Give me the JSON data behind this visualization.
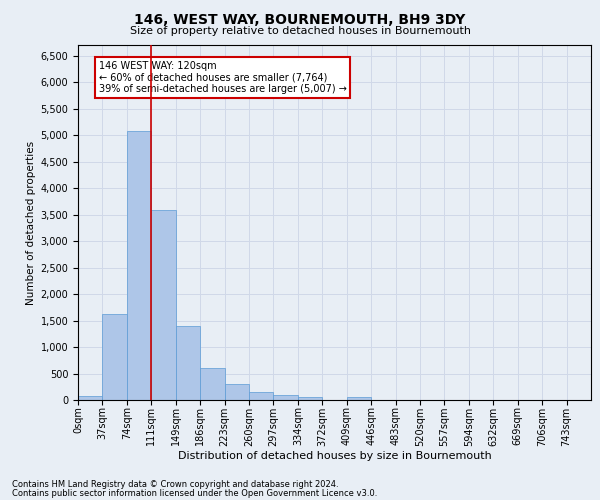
{
  "title": "146, WEST WAY, BOURNEMOUTH, BH9 3DY",
  "subtitle": "Size of property relative to detached houses in Bournemouth",
  "xlabel": "Distribution of detached houses by size in Bournemouth",
  "ylabel": "Number of detached properties",
  "footer_line1": "Contains HM Land Registry data © Crown copyright and database right 2024.",
  "footer_line2": "Contains public sector information licensed under the Open Government Licence v3.0.",
  "bin_labels": [
    "0sqm",
    "37sqm",
    "74sqm",
    "111sqm",
    "149sqm",
    "186sqm",
    "223sqm",
    "260sqm",
    "297sqm",
    "334sqm",
    "372sqm",
    "409sqm",
    "446sqm",
    "483sqm",
    "520sqm",
    "557sqm",
    "594sqm",
    "632sqm",
    "669sqm",
    "706sqm",
    "743sqm"
  ],
  "bar_values": [
    70,
    1630,
    5070,
    3580,
    1400,
    610,
    305,
    155,
    90,
    55,
    0,
    60,
    0,
    0,
    0,
    0,
    0,
    0,
    0,
    0,
    0
  ],
  "bar_color": "#aec6e8",
  "bar_edge_color": "#5b9bd5",
  "grid_color": "#d0d8e8",
  "vline_x": 3,
  "vline_color": "#cc0000",
  "annotation_text": "146 WEST WAY: 120sqm\n← 60% of detached houses are smaller (7,764)\n39% of semi-detached houses are larger (5,007) →",
  "annotation_box_color": "#ffffff",
  "annotation_box_edgecolor": "#cc0000",
  "ylim": [
    0,
    6700
  ],
  "yticks": [
    0,
    500,
    1000,
    1500,
    2000,
    2500,
    3000,
    3500,
    4000,
    4500,
    5000,
    5500,
    6000,
    6500
  ],
  "background_color": "#e8eef5",
  "plot_bg_color": "#e8eef5",
  "title_fontsize": 10,
  "subtitle_fontsize": 8,
  "ylabel_fontsize": 7.5,
  "xlabel_fontsize": 8,
  "tick_fontsize": 7,
  "annotation_fontsize": 7,
  "footer_fontsize": 6
}
